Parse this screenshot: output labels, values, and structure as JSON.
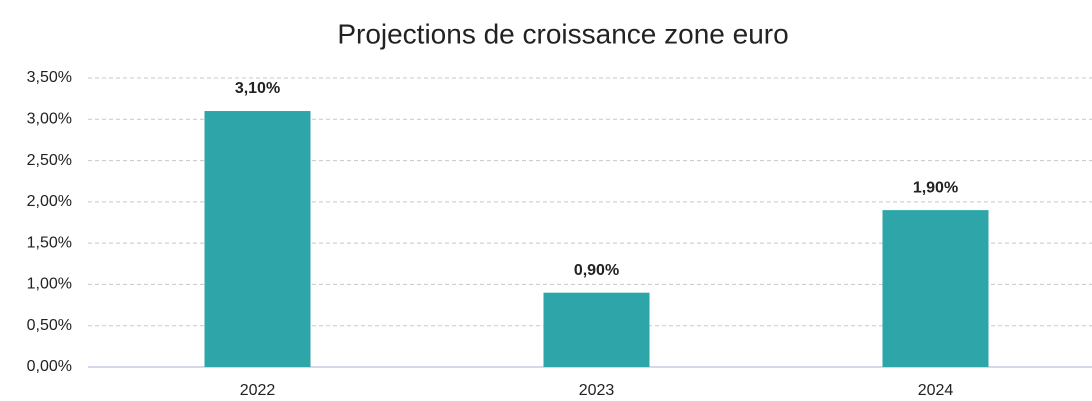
{
  "chart_data": {
    "type": "bar",
    "title": "Projections de croissance zone euro",
    "categories": [
      "2022",
      "2023",
      "2024"
    ],
    "values": [
      3.1,
      0.9,
      1.9
    ],
    "value_labels": [
      "3,10%",
      "0,90%",
      "1,90%"
    ],
    "color": "#2ea5a8",
    "ylim": [
      0,
      3.5
    ],
    "yticks": [
      {
        "value": 0,
        "label": "0,00%"
      },
      {
        "value": 0.5,
        "label": "0,50%"
      },
      {
        "value": 1,
        "label": "1,00%"
      },
      {
        "value": 1.5,
        "label": "1,50%"
      },
      {
        "value": 2,
        "label": "2,00%"
      },
      {
        "value": 2.5,
        "label": "2,50%"
      },
      {
        "value": 3,
        "label": "3,00%"
      },
      {
        "value": 3.5,
        "label": "3,50%"
      }
    ],
    "grid": true
  }
}
